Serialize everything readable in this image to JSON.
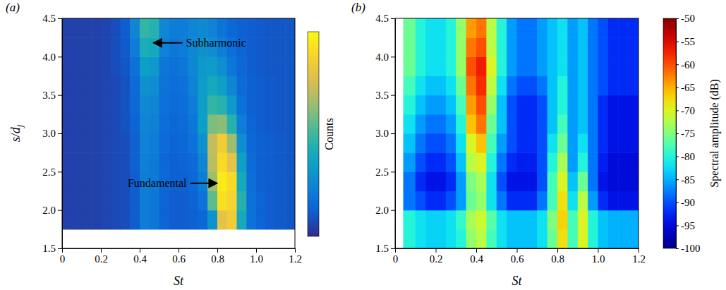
{
  "chart_data": [
    {
      "type": "heatmap",
      "panel_label": "(a)",
      "x_label": "St",
      "y_label": "s/dj",
      "xlim": [
        0,
        1.2
      ],
      "xticks": [
        0,
        0.2,
        0.4,
        0.6,
        0.8,
        {
          "value": 1,
          "label": "1.0"
        },
        1.2
      ],
      "ylim": [
        1.5,
        4.5
      ],
      "yticks": [
        1.5,
        {
          "value": 2,
          "label": "2.0"
        },
        2.5,
        {
          "value": 3,
          "label": "3.0"
        },
        3.5,
        {
          "value": 4,
          "label": "4.0"
        },
        4.5
      ],
      "x_edges": [
        0,
        0.05,
        0.1,
        0.15,
        0.2,
        0.25,
        0.3,
        0.35,
        0.4,
        0.45,
        0.5,
        0.55,
        0.6,
        0.65,
        0.7,
        0.75,
        0.8,
        0.85,
        0.9,
        0.95,
        1,
        1.05,
        1.1,
        1.15,
        1.2
      ],
      "y_edges": [
        1.75,
        2,
        2.25,
        2.5,
        2.75,
        3,
        3.25,
        3.5,
        3.75,
        4,
        4.25,
        4.5
      ],
      "z": [
        [
          5,
          5,
          5,
          5,
          6,
          7,
          8,
          12,
          22,
          20,
          14,
          12,
          12,
          13,
          15,
          30,
          80,
          85,
          40,
          18,
          14,
          12,
          11,
          10
        ],
        [
          5,
          5,
          5,
          5,
          6,
          7,
          8,
          12,
          22,
          20,
          14,
          12,
          12,
          14,
          18,
          55,
          92,
          88,
          45,
          18,
          14,
          12,
          11,
          10
        ],
        [
          5,
          5,
          5,
          5,
          6,
          7,
          8,
          12,
          22,
          21,
          15,
          13,
          13,
          15,
          22,
          65,
          95,
          90,
          40,
          17,
          13,
          12,
          11,
          10
        ],
        [
          5,
          5,
          5,
          5,
          6,
          7,
          8,
          13,
          23,
          21,
          15,
          13,
          14,
          16,
          25,
          70,
          90,
          80,
          35,
          16,
          13,
          12,
          11,
          10
        ],
        [
          5,
          5,
          5,
          5,
          6,
          7,
          8,
          13,
          24,
          22,
          16,
          14,
          15,
          18,
          30,
          72,
          85,
          65,
          28,
          15,
          13,
          12,
          11,
          10
        ],
        [
          5,
          5,
          5,
          5,
          6,
          7,
          9,
          14,
          25,
          23,
          17,
          15,
          16,
          20,
          35,
          60,
          62,
          45,
          22,
          14,
          12,
          11,
          10,
          10
        ],
        [
          5,
          5,
          5,
          5,
          6,
          7,
          9,
          15,
          27,
          25,
          18,
          16,
          17,
          22,
          35,
          48,
          45,
          32,
          18,
          13,
          12,
          11,
          10,
          10
        ],
        [
          5,
          5,
          5,
          5,
          6,
          7,
          9,
          16,
          30,
          28,
          19,
          17,
          18,
          24,
          34,
          40,
          35,
          25,
          16,
          13,
          12,
          11,
          10,
          10
        ],
        [
          5,
          5,
          5,
          5,
          6,
          8,
          10,
          18,
          35,
          32,
          20,
          18,
          20,
          26,
          32,
          34,
          28,
          20,
          15,
          12,
          11,
          10,
          10,
          10
        ],
        [
          5,
          5,
          5,
          5,
          6,
          8,
          11,
          22,
          42,
          40,
          24,
          20,
          22,
          26,
          30,
          28,
          22,
          17,
          14,
          12,
          11,
          10,
          10,
          10
        ],
        [
          5,
          5,
          5,
          5,
          6,
          8,
          12,
          25,
          48,
          45,
          26,
          22,
          22,
          25,
          27,
          24,
          19,
          15,
          13,
          12,
          11,
          10,
          10,
          10
        ]
      ],
      "colorbar": {
        "label": "Counts",
        "range": [
          0,
          100
        ]
      },
      "annotations": [
        {
          "text": "Subharmonic",
          "x": 0.62,
          "y": 4.18,
          "arrow_x": 0.47
        },
        {
          "text": "Fundamental",
          "x": 0.66,
          "y": 2.35,
          "arrow_x": 0.8
        }
      ]
    },
    {
      "type": "heatmap",
      "panel_label": "(b)",
      "x_label": "St",
      "xlim": [
        0,
        1.2
      ],
      "xticks": [
        0,
        0.2,
        0.4,
        0.6,
        0.8,
        {
          "value": 1,
          "label": "1.0"
        },
        1.2
      ],
      "ylim": [
        1.5,
        4.5
      ],
      "yticks": [
        1.5,
        {
          "value": 2,
          "label": "2.0"
        },
        2.5,
        {
          "value": 3,
          "label": "3.0"
        },
        3.5,
        {
          "value": 4,
          "label": "4.0"
        },
        4.5
      ],
      "x_edges": [
        0.04,
        0.1,
        0.15,
        0.2,
        0.25,
        0.3,
        0.35,
        0.4,
        0.45,
        0.5,
        0.55,
        0.6,
        0.65,
        0.7,
        0.75,
        0.8,
        0.85,
        0.9,
        0.95,
        1,
        1.05,
        1.1,
        1.15,
        1.2
      ],
      "y_edges": [
        1.5,
        1.75,
        2,
        2.25,
        2.5,
        2.75,
        3,
        3.25,
        3.5,
        3.75,
        4,
        4.25,
        4.5
      ],
      "z": [
        [
          -80,
          -82,
          -83,
          -83,
          -82,
          -80,
          -74,
          -72,
          -78,
          -82,
          -84,
          -84,
          -84,
          -82,
          -76,
          -68,
          -78,
          -70,
          -80,
          -84,
          -85,
          -85,
          -85
        ],
        [
          -80,
          -82,
          -83,
          -83,
          -82,
          -79,
          -73,
          -71,
          -77,
          -82,
          -84,
          -84,
          -84,
          -82,
          -75,
          -67,
          -78,
          -70,
          -80,
          -84,
          -85,
          -85,
          -85
        ],
        [
          -88,
          -90,
          -92,
          -92,
          -90,
          -86,
          -76,
          -74,
          -82,
          -88,
          -92,
          -92,
          -92,
          -88,
          -78,
          -68,
          -82,
          -72,
          -86,
          -92,
          -94,
          -94,
          -94
        ],
        [
          -88,
          -92,
          -94,
          -94,
          -92,
          -86,
          -75,
          -73,
          -82,
          -90,
          -94,
          -94,
          -94,
          -90,
          -78,
          -70,
          -84,
          -76,
          -88,
          -94,
          -95,
          -95,
          -95
        ],
        [
          -86,
          -90,
          -92,
          -92,
          -90,
          -84,
          -72,
          -70,
          -80,
          -88,
          -92,
          -93,
          -93,
          -90,
          -80,
          -73,
          -86,
          -80,
          -88,
          -93,
          -95,
          -95,
          -95
        ],
        [
          -84,
          -88,
          -90,
          -90,
          -88,
          -82,
          -70,
          -66,
          -78,
          -86,
          -90,
          -92,
          -92,
          -90,
          -82,
          -76,
          -86,
          -82,
          -88,
          -92,
          -94,
          -94,
          -94
        ],
        [
          -82,
          -86,
          -88,
          -88,
          -86,
          -80,
          -66,
          -62,
          -76,
          -84,
          -90,
          -92,
          -92,
          -90,
          -84,
          -78,
          -86,
          -84,
          -88,
          -92,
          -94,
          -94,
          -94
        ],
        [
          -80,
          -84,
          -86,
          -86,
          -84,
          -78,
          -64,
          -60,
          -74,
          -84,
          -90,
          -92,
          -92,
          -90,
          -84,
          -80,
          -86,
          -84,
          -88,
          -92,
          -94,
          -94,
          -94
        ],
        [
          -78,
          -82,
          -84,
          -84,
          -82,
          -76,
          -62,
          -58,
          -72,
          -82,
          -88,
          -90,
          -90,
          -88,
          -84,
          -80,
          -86,
          -84,
          -88,
          -90,
          -92,
          -92,
          -92
        ],
        [
          -76,
          -80,
          -82,
          -82,
          -80,
          -74,
          -60,
          -57,
          -70,
          -80,
          -86,
          -88,
          -88,
          -86,
          -84,
          -82,
          -86,
          -84,
          -88,
          -90,
          -92,
          -92,
          -92
        ],
        [
          -76,
          -80,
          -82,
          -82,
          -80,
          -74,
          -62,
          -60,
          -72,
          -80,
          -86,
          -88,
          -88,
          -86,
          -84,
          -82,
          -86,
          -84,
          -88,
          -90,
          -92,
          -92,
          -92
        ],
        [
          -76,
          -80,
          -82,
          -82,
          -80,
          -74,
          -64,
          -62,
          -72,
          -80,
          -86,
          -88,
          -88,
          -86,
          -84,
          -82,
          -86,
          -84,
          -88,
          -90,
          -92,
          -92,
          -92
        ]
      ],
      "colorbar": {
        "label": "Spectral amplitude (dB)",
        "range": [
          -100,
          -50
        ],
        "ticks": [
          -50,
          -55,
          -60,
          -65,
          -70,
          -75,
          -80,
          -85,
          -90,
          -95,
          -100
        ]
      }
    }
  ]
}
